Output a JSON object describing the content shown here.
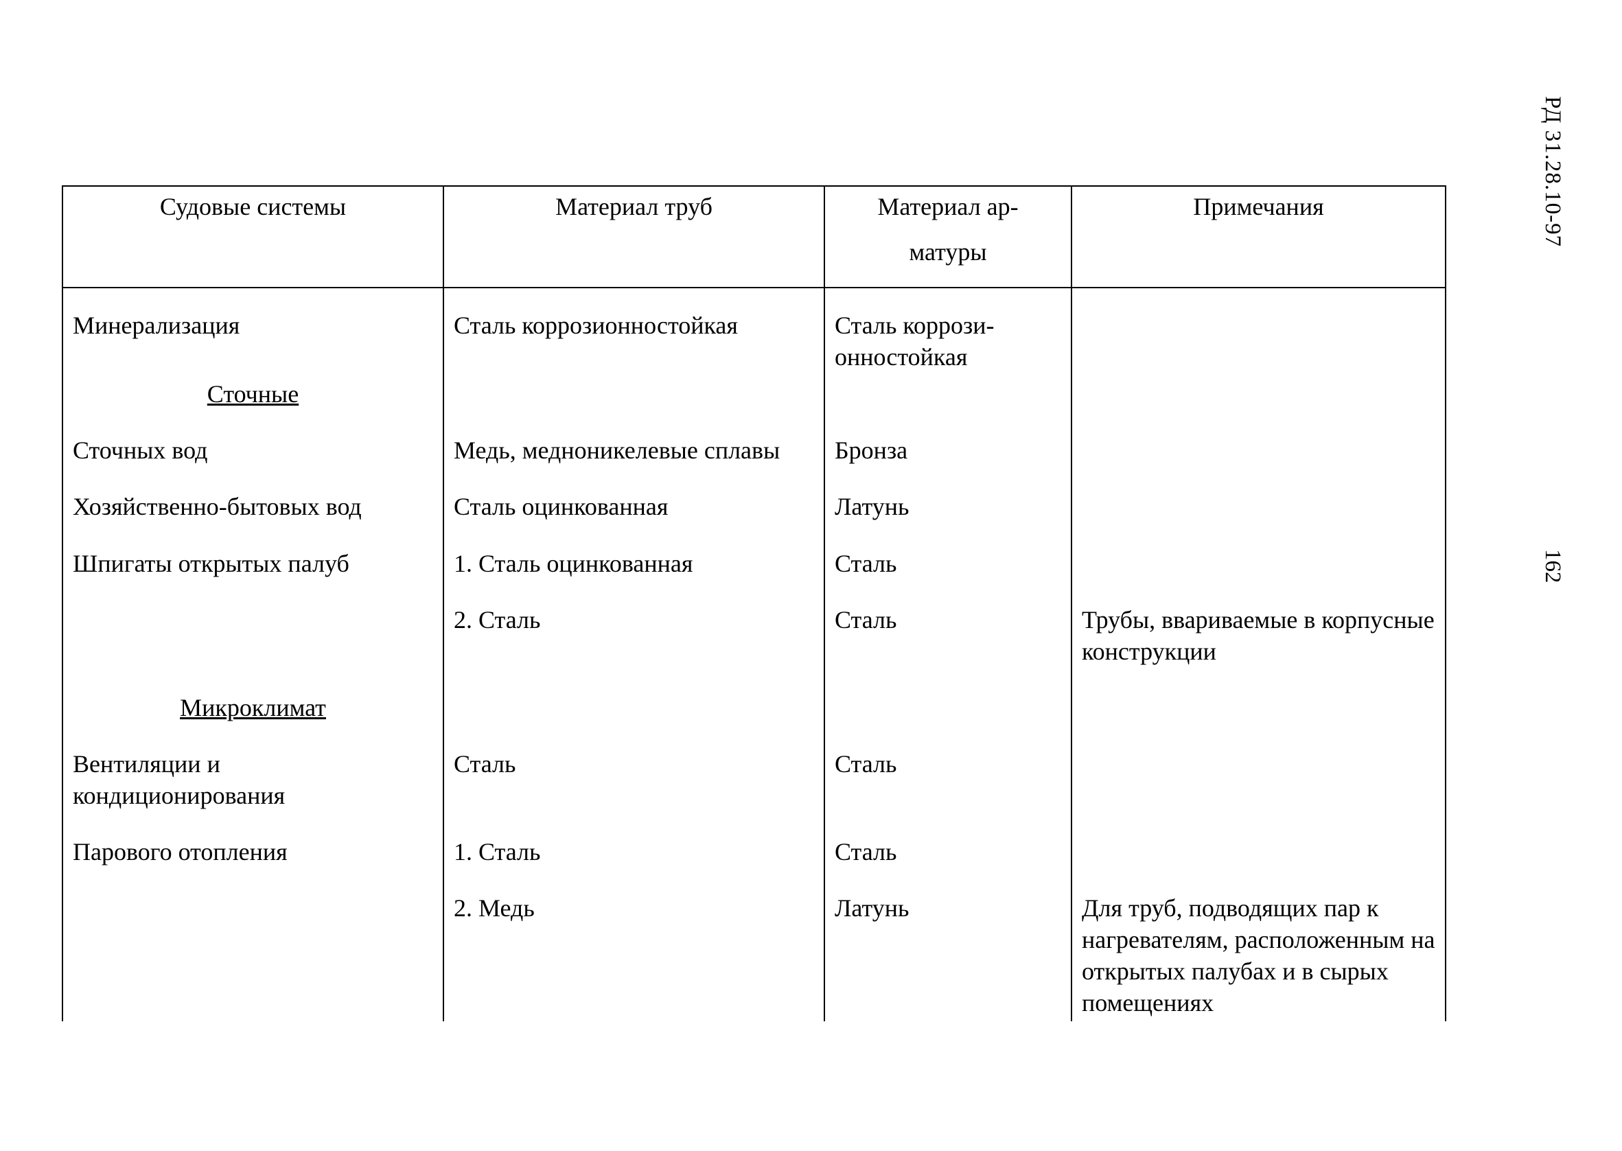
{
  "doc_id": "РД 31.28.10-97",
  "page_number": "162",
  "headers": {
    "col1": "Судовые системы",
    "col2": "Материал труб",
    "col3_line1": "Материал ар-",
    "col3_line2": "матуры",
    "col4": "Примечания"
  },
  "rows": {
    "mineralization": {
      "systems": "Минерализация",
      "pipes": "Сталь коррозионностойкая",
      "fittings": "Сталь коррози-онностойкая",
      "notes": ""
    },
    "section_sewage": "Сточные",
    "sewage_water": {
      "systems": "Сточных вод",
      "pipes": "Медь, медноникелевые сплавы",
      "fittings": "Бронза",
      "notes": ""
    },
    "domestic_water": {
      "systems": "Хозяйственно-бытовых вод",
      "pipes": "Сталь оцинкованная",
      "fittings": "Латунь",
      "notes": ""
    },
    "scuppers1": {
      "systems": "Шпигаты открытых палуб",
      "pipes": "1. Сталь оцинкованная",
      "fittings": "Сталь",
      "notes": ""
    },
    "scuppers2": {
      "systems": "",
      "pipes": "2. Сталь",
      "fittings": "Сталь",
      "notes": "Трубы, ввариваемые в корпусные конструкции"
    },
    "section_microclimate": "Микроклимат",
    "ventilation": {
      "systems": "Вентиляции и кондиционирования",
      "pipes": "Сталь",
      "fittings": "Сталь",
      "notes": ""
    },
    "steam1": {
      "systems": "Парового отопления",
      "pipes": "1. Сталь",
      "fittings": "Сталь",
      "notes": ""
    },
    "steam2": {
      "systems": "",
      "pipes": "2. Медь",
      "fittings": "Латунь",
      "notes": "Для труб, подводящих пар к нагревателям, расположенным на открытых палубах и в сырых помещениях"
    }
  }
}
